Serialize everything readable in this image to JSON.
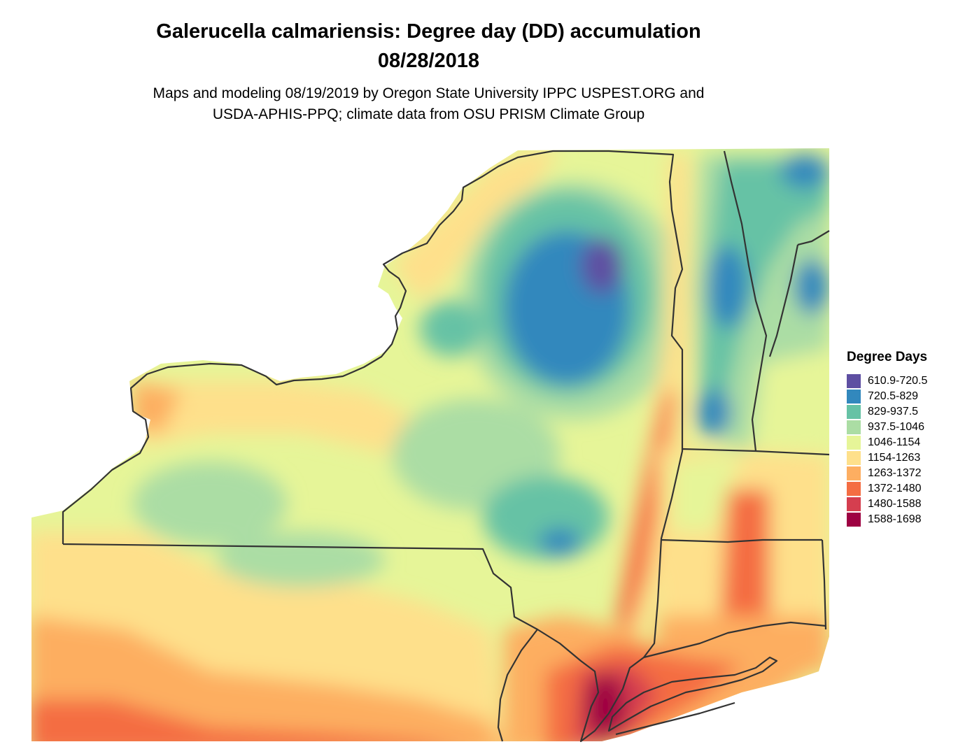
{
  "title": {
    "line1": "Galerucella calmariensis: Degree day (DD) accumulation",
    "line2": "08/28/2018"
  },
  "subtitle": {
    "line1": "Maps and modeling 08/19/2019 by Oregon State University IPPC USPEST.ORG and",
    "line2": "USDA-APHIS-PPQ; climate data from OSU PRISM Climate Group"
  },
  "legend": {
    "title": "Degree Days",
    "items": [
      {
        "label": "610.9-720.5",
        "color": "#5e4fa2"
      },
      {
        "label": "720.5-829",
        "color": "#3288bd"
      },
      {
        "label": "829-937.5",
        "color": "#66c2a5"
      },
      {
        "label": "937.5-1046",
        "color": "#abdda4"
      },
      {
        "label": "1046-1154",
        "color": "#e6f598"
      },
      {
        "label": "1154-1263",
        "color": "#fee08b"
      },
      {
        "label": "1263-1372",
        "color": "#fdae61"
      },
      {
        "label": "1372-1480",
        "color": "#f46d43"
      },
      {
        "label": "1480-1588",
        "color": "#d53e4f"
      },
      {
        "label": "1588-1698",
        "color": "#9e0142"
      }
    ]
  }
}
